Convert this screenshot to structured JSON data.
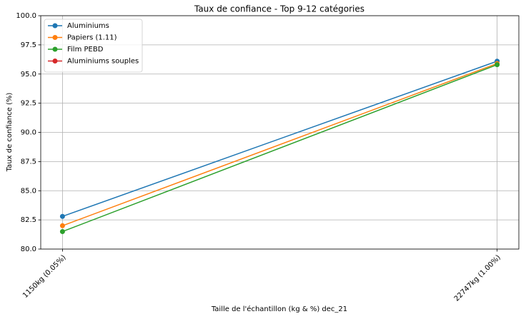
{
  "chart_data": {
    "type": "line",
    "title": "Taux de confiance - Top 9-12 catégories",
    "xlabel": "Taille de l'échantillon (kg & %) dec_21",
    "ylabel": "Taux de confiance (%)",
    "categories": [
      "1150kg (0.05%)",
      "22747kg (1.00%)"
    ],
    "series": [
      {
        "name": "Aluminiums",
        "color": "#1f77b4",
        "values": [
          82.8,
          96.1
        ]
      },
      {
        "name": "Papiers (1.11)",
        "color": "#ff7f0e",
        "values": [
          82.0,
          95.9
        ]
      },
      {
        "name": "Film PEBD",
        "color": "#2ca02c",
        "values": [
          81.5,
          95.8
        ]
      },
      {
        "name": "Aluminiums souples",
        "color": "#d62728",
        "values": [
          null,
          null
        ]
      }
    ],
    "ylim": [
      80,
      100
    ],
    "yticks": [
      {
        "value": 80,
        "label": "80.0"
      },
      82.5,
      {
        "value": 85,
        "label": "85.0"
      },
      87.5,
      {
        "value": 90,
        "label": "90.0"
      },
      92.5,
      {
        "value": 95,
        "label": "95.0"
      },
      97.5,
      {
        "value": 100,
        "label": "100.0"
      }
    ],
    "grid": true,
    "legend": "upper left"
  }
}
